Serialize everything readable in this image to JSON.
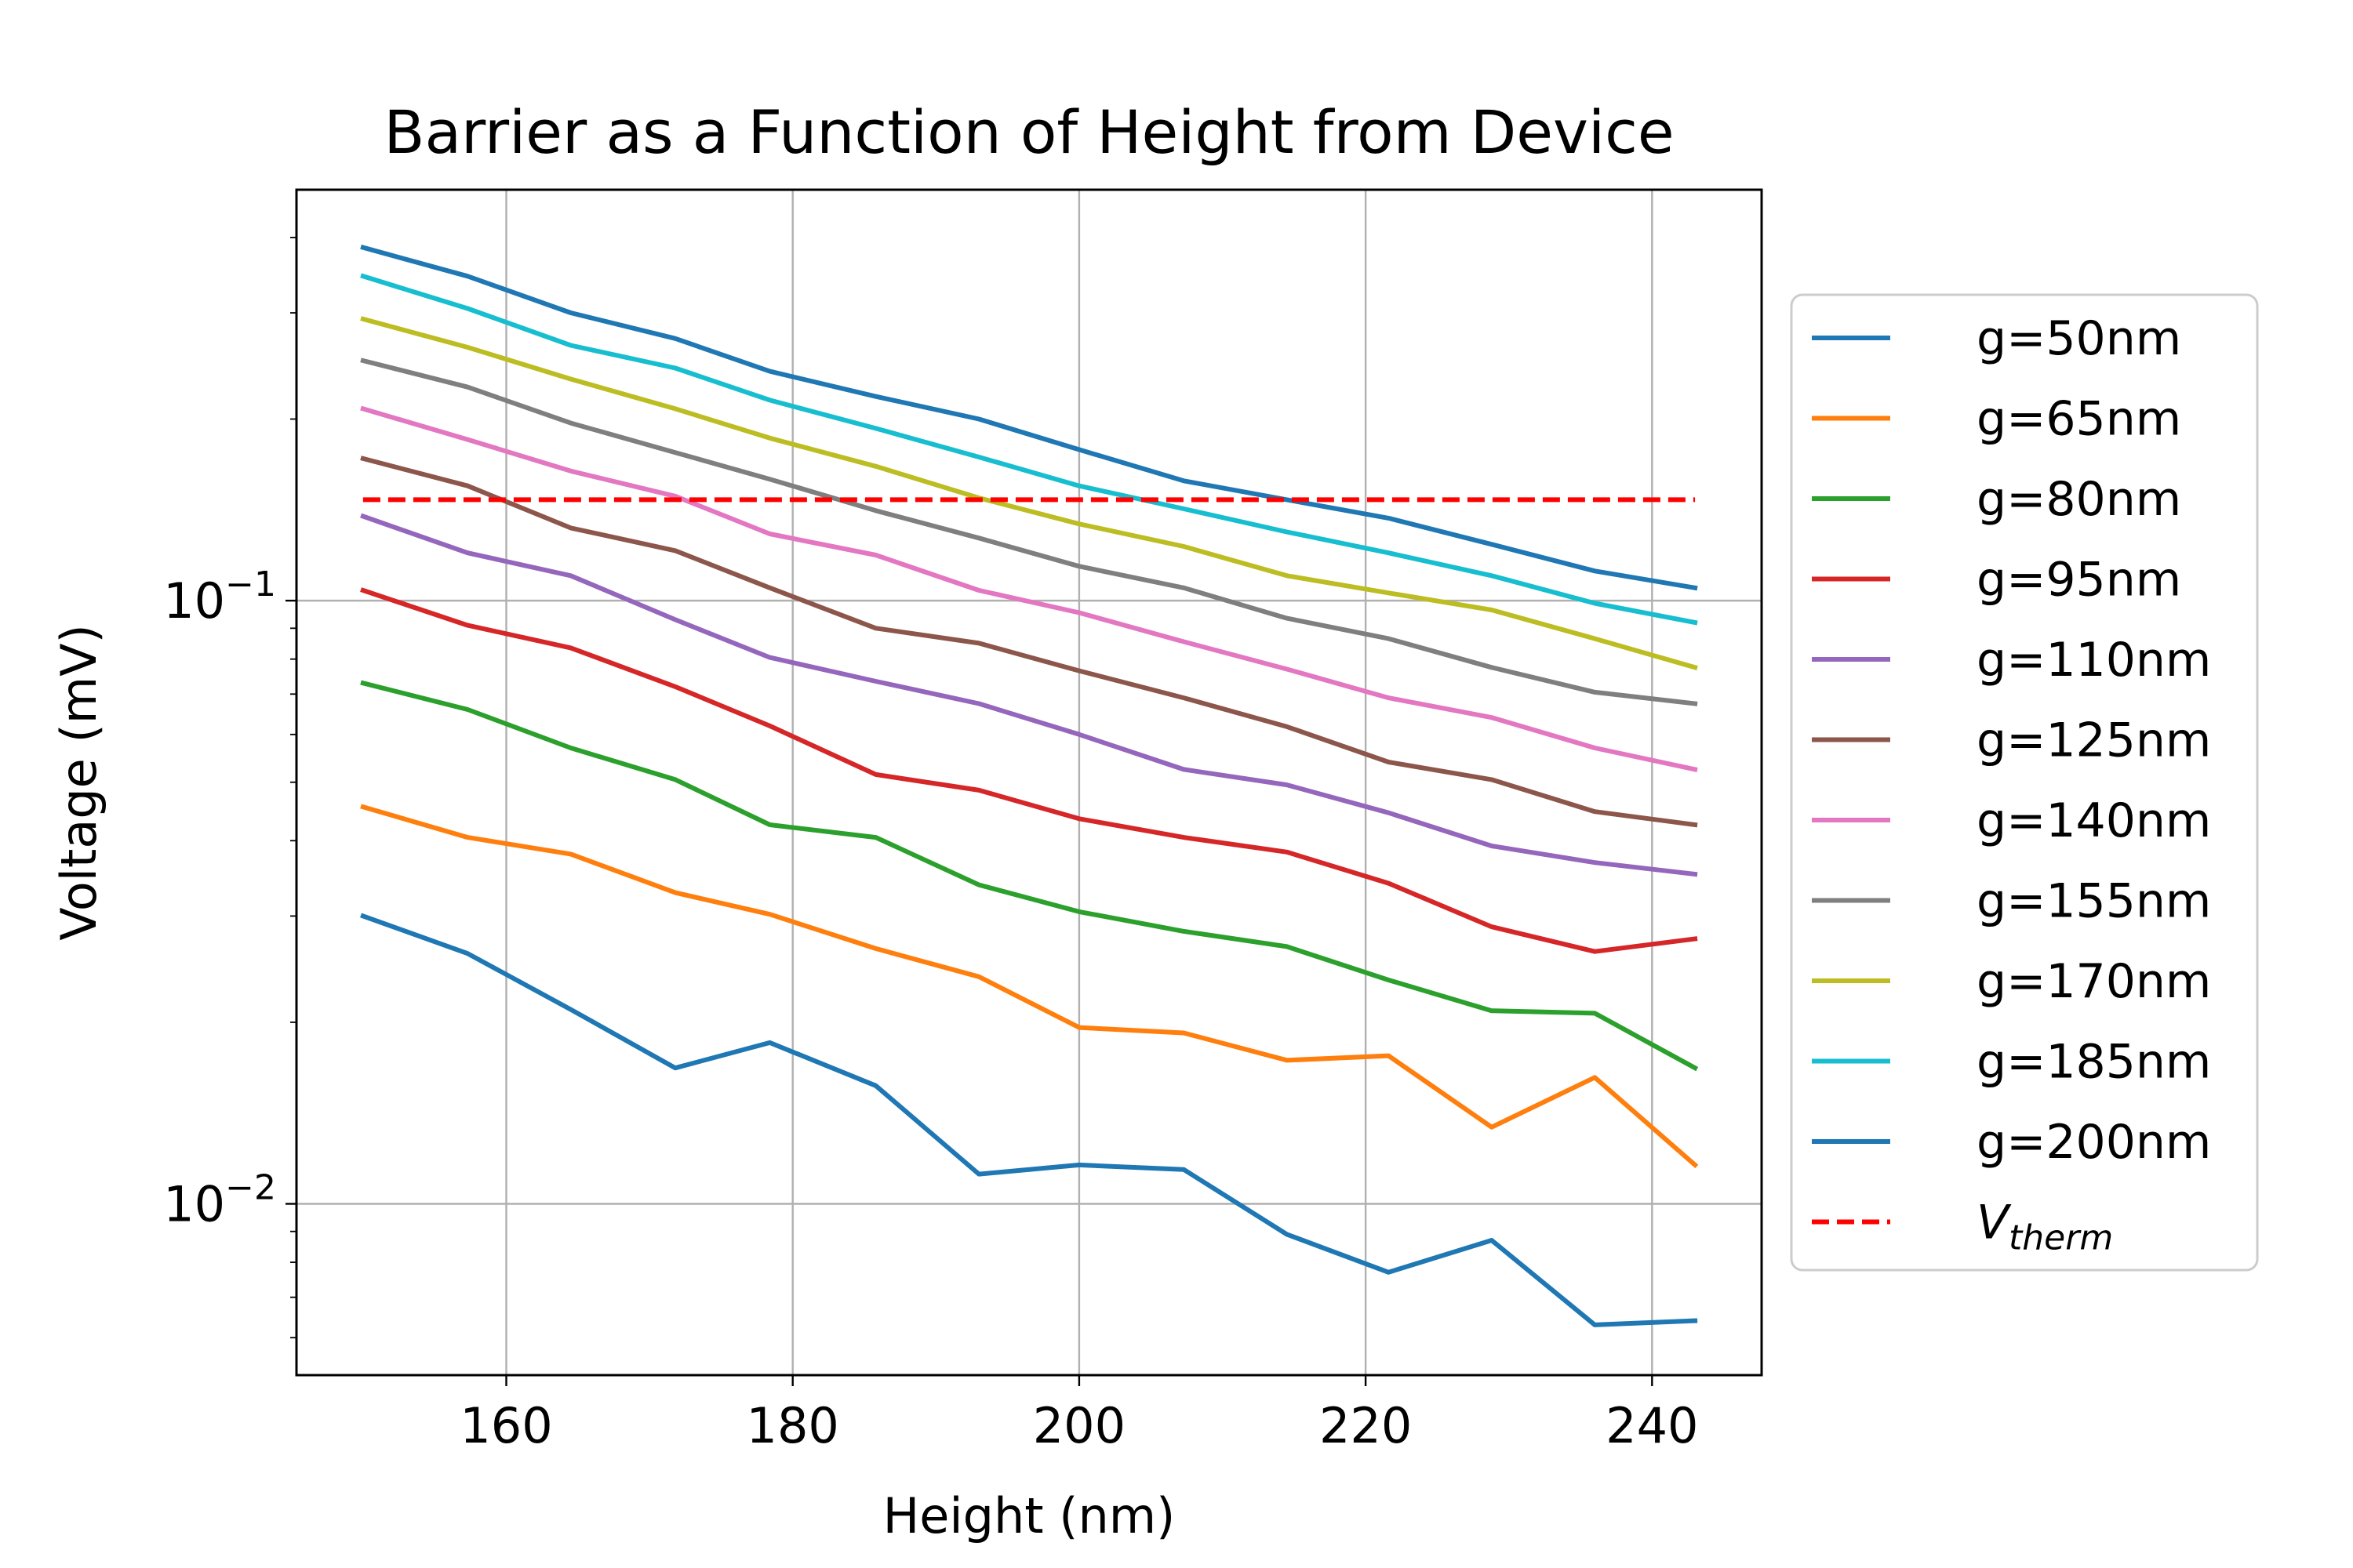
{
  "chart_data": {
    "type": "line",
    "title": "Barrier as a Function of Height from Device",
    "xlabel": "Height (nm)",
    "ylabel": "Voltage (mV)",
    "yscale": "log",
    "xlim": [
      145.35,
      247.65
    ],
    "ylim": [
      0.0052,
      0.48
    ],
    "xticks": [
      160,
      180,
      200,
      220,
      240
    ],
    "xtick_labels": [
      "160",
      "180",
      "200",
      "220",
      "240"
    ],
    "yticks": [
      0.1,
      0.01
    ],
    "ytick_labels": [
      {
        "base": "10",
        "exp": "−1"
      },
      {
        "base": "10",
        "exp": "−2"
      }
    ],
    "grid": true,
    "legend_position": "outside right",
    "x": [
      150,
      157.3,
      164.5,
      171.8,
      178.4,
      185.8,
      193,
      200,
      207.3,
      214.5,
      221.6,
      228.8,
      236,
      243
    ],
    "series": [
      {
        "name": "g=50nm",
        "color": "#1f77b4",
        "dash": false,
        "values": [
          0.385,
          0.345,
          0.3,
          0.272,
          0.24,
          0.218,
          0.2,
          0.178,
          0.158,
          0.147,
          0.137,
          0.124,
          0.112,
          0.105
        ]
      },
      {
        "name": "g=65nm",
        "color": "#ff7f0e",
        "dash": false,
        "values": [
          0.0455,
          0.0405,
          0.038,
          0.0328,
          0.0302,
          0.0265,
          0.0238,
          0.0196,
          0.0192,
          0.0173,
          0.0176,
          0.0134,
          0.0162,
          0.0116
        ]
      },
      {
        "name": "g=80nm",
        "color": "#2ca02c",
        "dash": false,
        "values": [
          0.073,
          0.066,
          0.057,
          0.0505,
          0.0425,
          0.0405,
          0.0338,
          0.0305,
          0.0283,
          0.0267,
          0.0235,
          0.0209,
          0.0207,
          0.0168
        ]
      },
      {
        "name": "g=95nm",
        "color": "#d62728",
        "dash": false,
        "values": [
          0.104,
          0.091,
          0.0835,
          0.072,
          0.062,
          0.0515,
          0.0485,
          0.0435,
          0.0405,
          0.0383,
          0.034,
          0.0288,
          0.0262,
          0.0275
        ]
      },
      {
        "name": "g=110nm",
        "color": "#9467bd",
        "dash": false,
        "values": [
          0.138,
          0.12,
          0.11,
          0.093,
          0.0805,
          0.0735,
          0.0675,
          0.06,
          0.0525,
          0.0495,
          0.0445,
          0.0392,
          0.0368,
          0.0352
        ]
      },
      {
        "name": "g=125nm",
        "color": "#8c564b",
        "dash": false,
        "values": [
          0.172,
          0.155,
          0.132,
          0.121,
          0.105,
          0.09,
          0.085,
          0.0765,
          0.069,
          0.0618,
          0.054,
          0.0505,
          0.0447,
          0.0425
        ]
      },
      {
        "name": "g=140nm",
        "color": "#e377c2",
        "dash": false,
        "values": [
          0.208,
          0.185,
          0.164,
          0.149,
          0.129,
          0.119,
          0.104,
          0.0955,
          0.0855,
          0.077,
          0.069,
          0.064,
          0.057,
          0.0525
        ]
      },
      {
        "name": "g=155nm",
        "color": "#7f7f7f",
        "dash": false,
        "values": [
          0.25,
          0.226,
          0.197,
          0.176,
          0.159,
          0.141,
          0.127,
          0.114,
          0.105,
          0.0935,
          0.0865,
          0.0775,
          0.0705,
          0.0675
        ]
      },
      {
        "name": "g=170nm",
        "color": "#bcbd22",
        "dash": false,
        "values": [
          0.293,
          0.263,
          0.233,
          0.208,
          0.186,
          0.167,
          0.148,
          0.134,
          0.123,
          0.11,
          0.103,
          0.0965,
          0.0865,
          0.0775
        ]
      },
      {
        "name": "g=185nm",
        "color": "#17becf",
        "dash": false,
        "values": [
          0.345,
          0.305,
          0.265,
          0.243,
          0.215,
          0.193,
          0.173,
          0.155,
          0.142,
          0.13,
          0.12,
          0.11,
          0.099,
          0.092
        ]
      },
      {
        "name": "g=200nm",
        "color": "#1f77b4",
        "dash": false,
        "values": [
          0.03,
          0.026,
          0.021,
          0.0168,
          0.0185,
          0.0157,
          0.0112,
          0.0116,
          0.0114,
          0.0089,
          0.0077,
          0.0087,
          0.0063,
          0.0064
        ]
      },
      {
        "name": "V_therm",
        "label_main": "V",
        "label_sub": "therm",
        "color": "#ff0000",
        "dash": true,
        "values": [
          0.147,
          0.147,
          0.147,
          0.147,
          0.147,
          0.147,
          0.147,
          0.147,
          0.147,
          0.147,
          0.147,
          0.147,
          0.147,
          0.147
        ]
      }
    ]
  }
}
